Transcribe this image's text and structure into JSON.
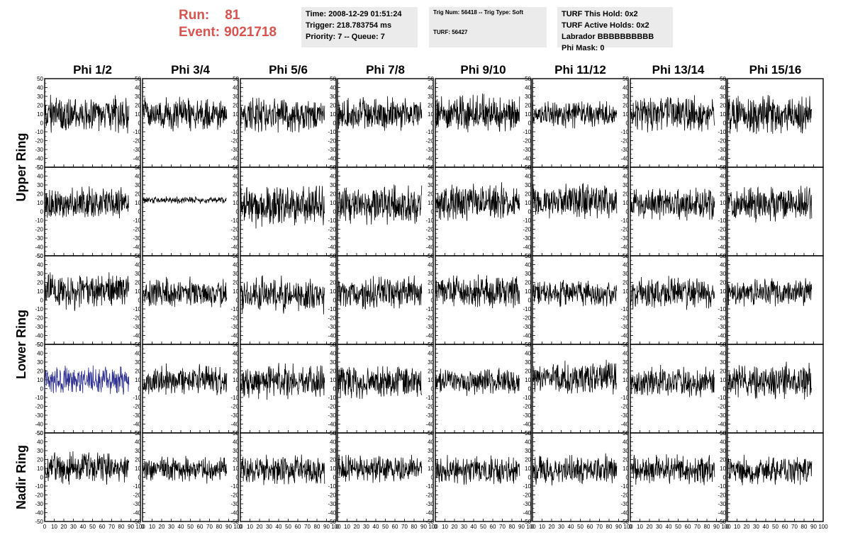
{
  "header": {
    "run_label": "Run:",
    "run_value": "81",
    "event_label": "Event:",
    "event_value": "9021718"
  },
  "info_time": {
    "time": "Time: 2008-12-29 01:51:24",
    "trigger": "Trigger: 218.783754 ms",
    "priority": "Priority: 7 -- Queue: 7"
  },
  "info_trig": {
    "trig": "Trig Num: 56418 -- Trig Type: Soft",
    "turf": "TURF: 56427"
  },
  "info_turf": {
    "hold": "TURF This Hold: 0x2",
    "active": "TURF Active Holds: 0x2",
    "labrador": "Labrador BBBBBBBBBB",
    "phimask": "Phi Mask: 0"
  },
  "colors": {
    "header_red": "#d9534f",
    "trace": "#000000",
    "highlight_trace": "#2e3192",
    "info_bg": "#ebebeb"
  },
  "chart_data": {
    "type": "line",
    "columns": [
      "Phi 1/2",
      "Phi 3/4",
      "Phi 5/6",
      "Phi 7/8",
      "Phi 9/10",
      "Phi 11/12",
      "Phi 13/14",
      "Phi 15/16"
    ],
    "rows": [
      "Upper Ring",
      "Lower Ring",
      "Nadir Ring"
    ],
    "panel_rows": 5,
    "row_label_spans": [
      [
        0,
        1
      ],
      [
        2,
        3
      ],
      [
        4,
        4
      ]
    ],
    "xlim": [
      0,
      100
    ],
    "ylim": [
      -50,
      50
    ],
    "xticks": [
      0,
      10,
      20,
      30,
      40,
      50,
      60,
      70,
      80,
      90,
      100
    ],
    "yticks": [
      -50,
      -40,
      -30,
      -20,
      -10,
      0,
      10,
      20,
      30,
      40,
      50
    ],
    "samples": 260,
    "x_max": 88,
    "highlight_panel": [
      3,
      0
    ],
    "panel_amplitude": [
      [
        16,
        14,
        15,
        14,
        16,
        12,
        15,
        16
      ],
      [
        13,
        3,
        18,
        17,
        16,
        15,
        14,
        16
      ],
      [
        15,
        13,
        15,
        14,
        14,
        11,
        14,
        12
      ],
      [
        12,
        13,
        15,
        14,
        11,
        14,
        14,
        15
      ],
      [
        14,
        11,
        13,
        13,
        12,
        13,
        13,
        12
      ]
    ],
    "panel_offset": [
      [
        10,
        10,
        10,
        10,
        10,
        10,
        10,
        10
      ],
      [
        10,
        13,
        6,
        8,
        10,
        12,
        8,
        8
      ],
      [
        10,
        8,
        6,
        8,
        10,
        8,
        8,
        8
      ],
      [
        10,
        10,
        8,
        8,
        8,
        12,
        8,
        8
      ],
      [
        10,
        8,
        8,
        10,
        8,
        8,
        8,
        8
      ]
    ]
  }
}
